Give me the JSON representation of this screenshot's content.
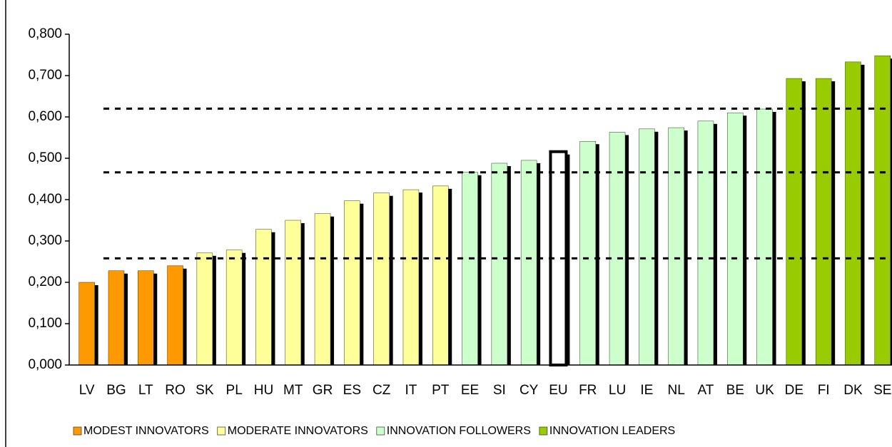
{
  "chart_data": {
    "type": "bar",
    "categories": [
      "LV",
      "BG",
      "LT",
      "RO",
      "SK",
      "PL",
      "HU",
      "MT",
      "GR",
      "ES",
      "CZ",
      "IT",
      "PT",
      "EE",
      "SI",
      "CY",
      "EU",
      "FR",
      "LU",
      "IE",
      "NL",
      "AT",
      "BE",
      "UK",
      "DE",
      "FI",
      "DK",
      "SE"
    ],
    "values": [
      0.2,
      0.228,
      0.228,
      0.24,
      0.271,
      0.278,
      0.328,
      0.35,
      0.366,
      0.397,
      0.416,
      0.424,
      0.433,
      0.466,
      0.488,
      0.495,
      0.516,
      0.541,
      0.563,
      0.571,
      0.574,
      0.59,
      0.61,
      0.619,
      0.693,
      0.693,
      0.733,
      0.748
    ],
    "colors": [
      "#ff9900",
      "#ff9900",
      "#ff9900",
      "#ff9900",
      "#ffff99",
      "#ffff99",
      "#ffff99",
      "#ffff99",
      "#ffff99",
      "#ffff99",
      "#ffff99",
      "#ffff99",
      "#ffff99",
      "#ccffcc",
      "#ccffcc",
      "#ccffcc",
      "#ffffff",
      "#ccffcc",
      "#ccffcc",
      "#ccffcc",
      "#ccffcc",
      "#ccffcc",
      "#ccffcc",
      "#ccffcc",
      "#99cc00",
      "#99cc00",
      "#99cc00",
      "#99cc00"
    ],
    "edgecolors": [
      "#333",
      "#333",
      "#333",
      "#333",
      "#333",
      "#333",
      "#333",
      "#333",
      "#333",
      "#333",
      "#333",
      "#333",
      "#333",
      "#333",
      "#333",
      "#333",
      "#000000",
      "#333",
      "#333",
      "#333",
      "#333",
      "#333",
      "#333",
      "#333",
      "#333",
      "#333",
      "#333",
      "#333"
    ],
    "legend": [
      {
        "name": "MODEST INNOVATORS",
        "color": "#ff9900"
      },
      {
        "name": "MODERATE INNOVATORS",
        "color": "#ffff99"
      },
      {
        "name": "INNOVATION FOLLOWERS",
        "color": "#ccffcc"
      },
      {
        "name": "INNOVATION LEADERS",
        "color": "#99cc00"
      }
    ],
    "hlines": [
      0.258,
      0.466,
      0.62
    ],
    "ylim": [
      0,
      0.8
    ],
    "yticks": [
      {
        "value": 0,
        "label": "0,000"
      },
      {
        "value": 0.1,
        "label": "0,100"
      },
      {
        "value": 0.2,
        "label": "0,200"
      },
      {
        "value": 0.3,
        "label": "0,300"
      },
      {
        "value": 0.4,
        "label": "0,400"
      },
      {
        "value": 0.5,
        "label": "0,500"
      },
      {
        "value": 0.6,
        "label": "0,600"
      },
      {
        "value": 0.7,
        "label": "0,700"
      },
      {
        "value": 0.8,
        "label": "0,800"
      }
    ]
  }
}
